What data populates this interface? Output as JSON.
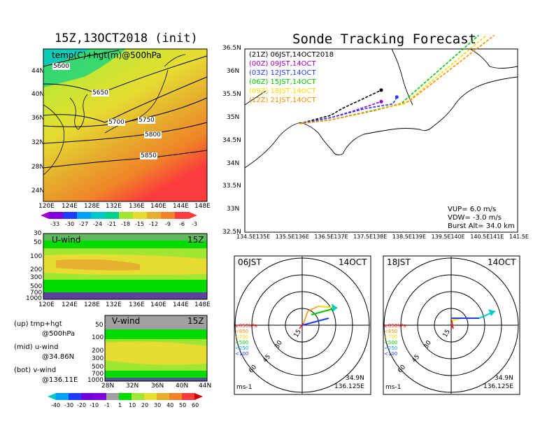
{
  "page": {
    "left_title": "15Z,13OCT2018 (init)",
    "right_title": "Sonde Tracking Forecast"
  },
  "colors": {
    "temp_scale": [
      "#a000c8",
      "#8200dc",
      "#1e3cff",
      "#00a0ff",
      "#00c8c8",
      "#00d28c",
      "#a0e632",
      "#e6dc32",
      "#e6af2d",
      "#f08228",
      "#fa3c3c"
    ],
    "wind_scale": [
      "#00c8c8",
      "#00a0ff",
      "#1e3cff",
      "#8200dc",
      "#a0a0a0",
      "#00dc00",
      "#a0e632",
      "#e6dc32",
      "#e6af2d",
      "#f08228",
      "#fa3c3c",
      "#d20000"
    ],
    "tracks": {
      "21Z": "#000000",
      "00Z": "#a000c8",
      "03Z": "#1e3cff",
      "06Z": "#00c800",
      "09Z": "#ffd700",
      "12Z": "#ff8c00"
    }
  },
  "chart_data": [
    {
      "type": "heatmap",
      "id": "temp_map",
      "title": "temp(C)+hgt(m)@500hPa",
      "x_ticks": [
        "120E",
        "124E",
        "128E",
        "132E",
        "136E",
        "140E",
        "144E",
        "148E"
      ],
      "y_ticks": [
        "44N",
        "40N",
        "36N",
        "32N",
        "28N",
        "24N"
      ],
      "xlim": [
        120,
        150
      ],
      "ylim": [
        22,
        48
      ],
      "contour_labels": [
        "5600",
        "5650",
        "5700",
        "5750",
        "5800",
        "5850"
      ],
      "colorbar_ticks": [
        "-33",
        "-30",
        "-27",
        "-24",
        "-21",
        "-18",
        "-15",
        "-12",
        "-9",
        "-6",
        "-3"
      ]
    },
    {
      "type": "heatmap",
      "id": "u_wind",
      "title": "U-wind",
      "time_label": "15Z",
      "x_ticks": [
        "120E",
        "124E",
        "128E",
        "132E",
        "136E",
        "140E",
        "144E",
        "148E"
      ],
      "y_ticks": [
        "30",
        "50",
        "100",
        "200",
        "300",
        "500",
        "700",
        "1000"
      ]
    },
    {
      "type": "heatmap",
      "id": "v_wind",
      "title": "V-wind",
      "time_label": "15Z",
      "x_ticks": [
        "28N",
        "32N",
        "36N",
        "40N",
        "44N"
      ],
      "y_ticks": [
        "50",
        "100",
        "200",
        "300",
        "500",
        "700",
        "1000"
      ],
      "colorbar_ticks": [
        "-40",
        "-30",
        "-20",
        "-10",
        "-1",
        "1",
        "10",
        "20",
        "30",
        "40",
        "50",
        "60"
      ]
    },
    {
      "type": "line",
      "id": "track_map",
      "title": "Sonde Tracking Forecast",
      "xlim": [
        134.5,
        141.5
      ],
      "ylim": [
        32.5,
        36.5
      ],
      "x_ticks": [
        "134.5E",
        "135E",
        "135.5E",
        "136E",
        "136.5E",
        "137E",
        "137.5E",
        "138E",
        "138.5E",
        "139E",
        "139.5E",
        "140E",
        "140.5E",
        "141E",
        "141.5E"
      ],
      "y_ticks": [
        "36.5N",
        "36N",
        "35.5N",
        "35N",
        "34.5N",
        "34N",
        "33.5N",
        "33N",
        "32.5N"
      ],
      "legend": [
        {
          "label": "(21Z)  06JST,14OCT2018",
          "color": "#000000"
        },
        {
          "label": "(00Z)  09JST,14OCT",
          "color": "#a000c8"
        },
        {
          "label": "(03Z)  12JST,14OCT",
          "color": "#1e3cff"
        },
        {
          "label": "(06Z)  15JST,14OCT",
          "color": "#00c800"
        },
        {
          "label": "(09Z)  18JST,14OCT",
          "color": "#ffd700"
        },
        {
          "label": "(12Z)  21JST,14OCT",
          "color": "#ff8c00"
        }
      ],
      "params": [
        "VUP=  6.0  m/s",
        "VDW=  -3.0  m/s",
        "Burst Alt=  34.0  km"
      ],
      "series": [
        {
          "name": "21Z",
          "color": "#000000",
          "points": [
            [
              135.9,
              34.87
            ],
            [
              136.7,
              35.05
            ],
            [
              137.0,
              35.2
            ],
            [
              137.5,
              35.4
            ],
            [
              138.0,
              35.6
            ]
          ]
        },
        {
          "name": "00Z",
          "color": "#a000c8",
          "points": [
            [
              135.9,
              34.87
            ],
            [
              136.7,
              35.0
            ],
            [
              137.3,
              35.15
            ],
            [
              138.0,
              35.35
            ]
          ]
        },
        {
          "name": "03Z",
          "color": "#1e3cff",
          "points": [
            [
              135.9,
              34.87
            ],
            [
              136.7,
              35.0
            ],
            [
              137.6,
              35.2
            ],
            [
              138.3,
              35.3
            ],
            [
              138.4,
              35.45
            ]
          ]
        },
        {
          "name": "06Z",
          "color": "#00c800",
          "points": [
            [
              135.9,
              34.87
            ],
            [
              136.7,
              34.95
            ],
            [
              137.8,
              35.15
            ],
            [
              138.5,
              35.3
            ],
            [
              140.5,
              36.8
            ]
          ]
        },
        {
          "name": "09Z",
          "color": "#ffd700",
          "points": [
            [
              135.9,
              34.87
            ],
            [
              136.7,
              34.95
            ],
            [
              138.0,
              35.2
            ],
            [
              138.6,
              35.3
            ],
            [
              140.7,
              36.8
            ]
          ]
        },
        {
          "name": "12Z",
          "color": "#ff8c00",
          "points": [
            [
              135.9,
              34.87
            ],
            [
              136.7,
              34.95
            ],
            [
              138.0,
              35.2
            ],
            [
              138.7,
              35.35
            ],
            [
              140.9,
              36.8
            ]
          ]
        }
      ]
    },
    {
      "type": "line",
      "id": "hodo_left",
      "title": "06JST",
      "date_label": "14OCT",
      "ring_labels": [
        "15",
        "30",
        "45",
        "60"
      ],
      "unit_label": "ms-1",
      "location": [
        "34.9N",
        "136.125E"
      ],
      "legend": [
        {
          "label": "≥850hPa",
          "color": "#ff2020"
        },
        {
          "label": "<850",
          "color": "#ff8c00"
        },
        {
          "label": "<700",
          "color": "#ffd700"
        },
        {
          "label": "<500",
          "color": "#00c800"
        },
        {
          "label": "<250",
          "color": "#00a0ff"
        },
        {
          "label": "<100",
          "color": "#1e3cff"
        }
      ]
    },
    {
      "type": "line",
      "id": "hodo_right",
      "title": "18JST",
      "date_label": "14OCT",
      "ring_labels": [
        "15",
        "30",
        "45",
        "60"
      ],
      "unit_label": "ms-1",
      "location": [
        "34.9N",
        "136.125E"
      ],
      "legend": [
        {
          "label": "≥850hPa",
          "color": "#ff2020"
        },
        {
          "label": "<850",
          "color": "#ff8c00"
        },
        {
          "label": "<700",
          "color": "#ffd700"
        },
        {
          "label": "<500",
          "color": "#00c800"
        },
        {
          "label": "<250",
          "color": "#00a0ff"
        },
        {
          "label": "<100",
          "color": "#1e3cff"
        }
      ]
    }
  ],
  "caption": {
    "up_line1": "(up) tmp+hgt",
    "up_line2": "@500hPa",
    "mid_line1": "(mid) u-wind",
    "mid_line2": "@34.86N",
    "bot_line1": "(bot) v-wind",
    "bot_line2": "@136.11E"
  }
}
